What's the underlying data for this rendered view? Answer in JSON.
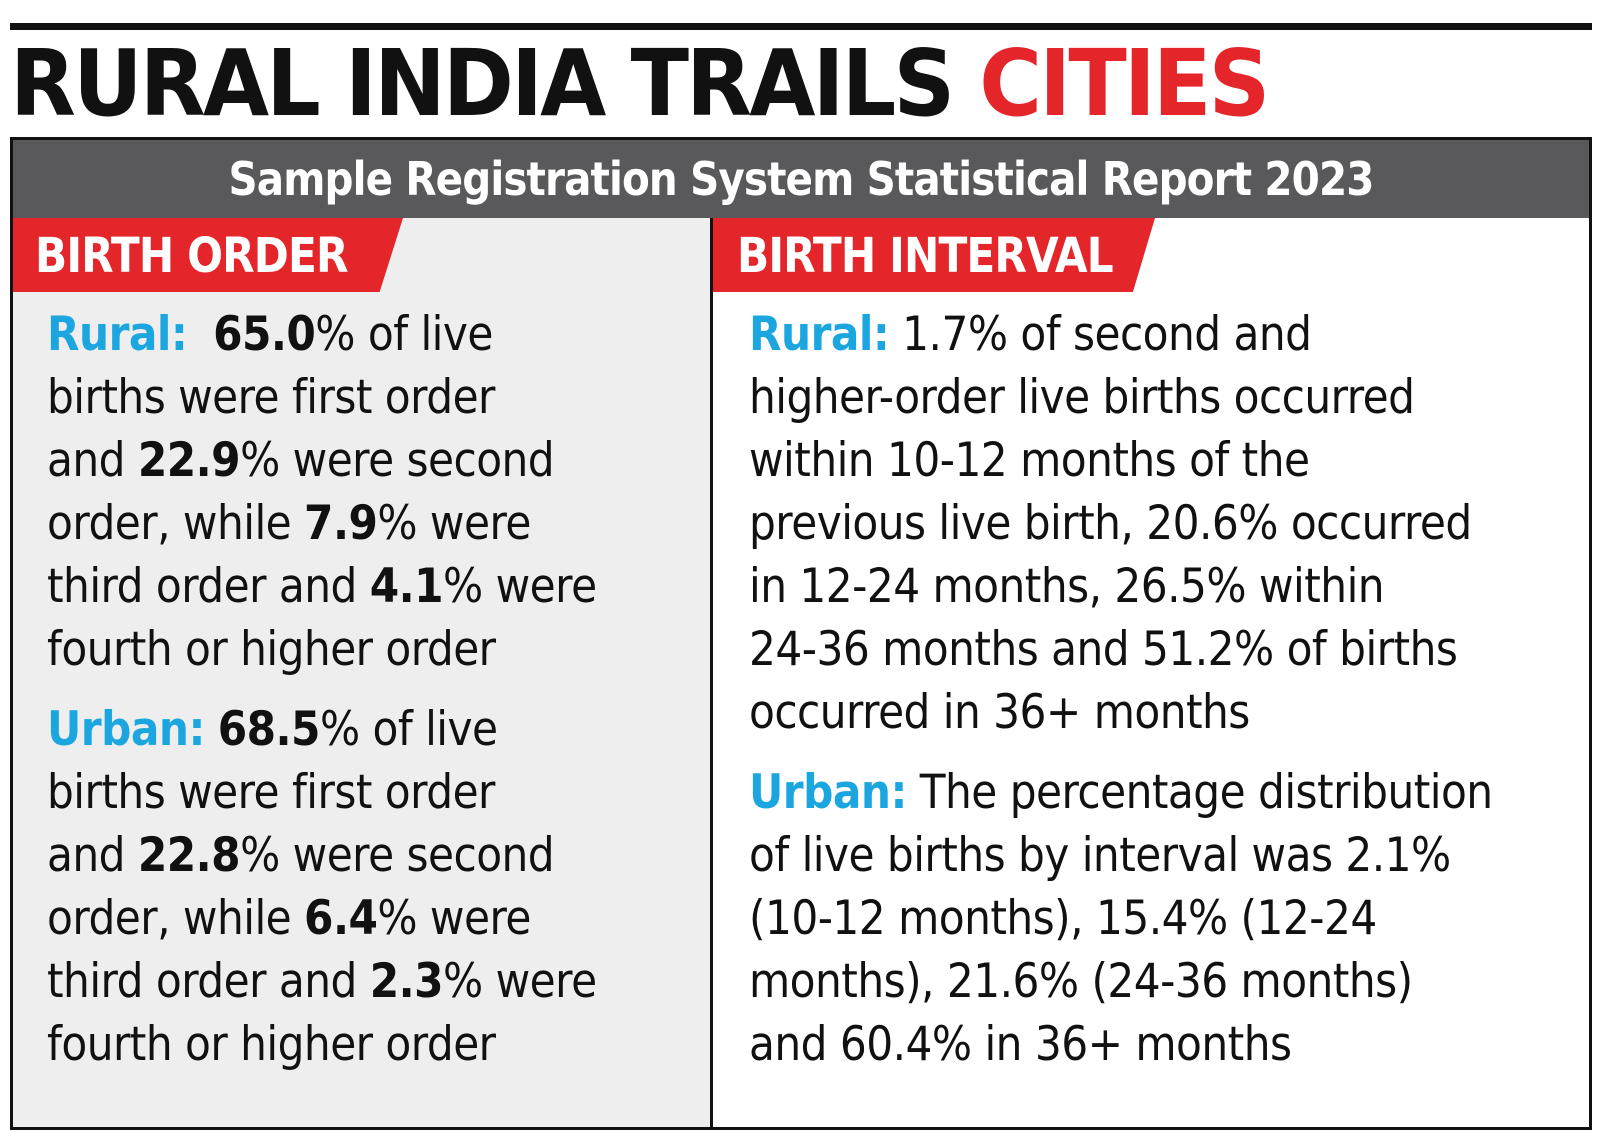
{
  "headline": {
    "main": "RURAL INDIA TRAILS",
    "accent": "CITIES"
  },
  "subhead": "Sample Registration System Statistical Report 2023",
  "colors": {
    "accent_red": "#e4262b",
    "label_blue": "#1ba6e0",
    "subhead_grey": "#59595b",
    "left_panel_bg": "#eeeeee"
  },
  "birth_order": {
    "heading": "BIRTH ORDER",
    "rural": {
      "label": "Rural:",
      "first": "65.0",
      "t1": "% of live",
      "t2": "births were first order",
      "t3": "and ",
      "second": "22.9",
      "t4": "% were second",
      "t5": "order, while ",
      "third": "7.9",
      "t6": "% were",
      "t7": "third order and ",
      "fourth": "4.1",
      "t8": "% were",
      "t9": "fourth or higher order"
    },
    "urban": {
      "label": "Urban:",
      "first": "68.5",
      "t1": "% of live",
      "t2": "births were first order",
      "t3": "and ",
      "second": "22.8",
      "t4": "% were second",
      "t5": "order, while ",
      "third": "6.4",
      "t6": "% were",
      "t7": "third order and ",
      "fourth": "2.3",
      "t8": "% were",
      "t9": "fourth or higher order"
    }
  },
  "birth_interval": {
    "heading": "BIRTH INTERVAL",
    "rural": {
      "label": "Rural:",
      "lines": [
        " 1.7% of second and",
        "higher-order live births occurred",
        "within 10-12 months of the",
        "previous live birth, 20.6% occurred",
        "in 12-24 months, 26.5% within",
        "24-36 months and 51.2% of births",
        "occurred in 36+ months"
      ]
    },
    "urban": {
      "label": "Urban:",
      "lines": [
        " The percentage distribution",
        "of live births by interval was 2.1%",
        "(10-12 months), 15.4% (12-24",
        "months), 21.6% (24-36 months)",
        "and 60.4% in 36+ months"
      ]
    }
  }
}
